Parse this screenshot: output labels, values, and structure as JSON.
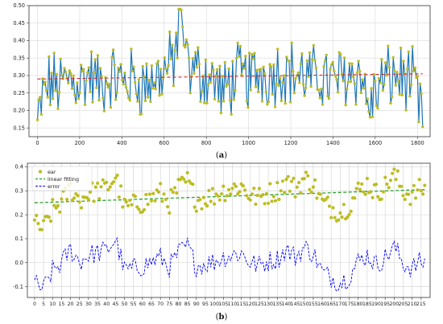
{
  "chart_data": [
    {
      "type": "line",
      "caption": "a",
      "xlim": [
        -40,
        1860
      ],
      "ylim": [
        0.125,
        0.5
      ],
      "x_ticks": [
        0,
        200,
        400,
        600,
        800,
        1000,
        1200,
        1400,
        1600,
        1800
      ],
      "y_ticks": [
        0.15,
        0.2,
        0.25,
        0.3,
        0.35,
        0.4,
        0.45,
        0.5
      ],
      "grid": true,
      "legend": "none",
      "series": [
        {
          "style": "line-with-markers",
          "line_color": "#1f77b4",
          "marker_color": "#bcbd22"
        },
        {
          "style": "dashed-trend",
          "color": "#d62728"
        }
      ],
      "anchors": [
        [
          0,
          0.16
        ],
        [
          25,
          0.24
        ],
        [
          60,
          0.28
        ],
        [
          100,
          0.27
        ],
        [
          150,
          0.29
        ],
        [
          200,
          0.28
        ],
        [
          250,
          0.3
        ],
        [
          300,
          0.27
        ],
        [
          350,
          0.3
        ],
        [
          400,
          0.28
        ],
        [
          450,
          0.29
        ],
        [
          500,
          0.27
        ],
        [
          550,
          0.29
        ],
        [
          600,
          0.31
        ],
        [
          640,
          0.34
        ],
        [
          670,
          0.4
        ],
        [
          690,
          0.42
        ],
        [
          700,
          0.33
        ],
        [
          750,
          0.31
        ],
        [
          800,
          0.3
        ],
        [
          850,
          0.28
        ],
        [
          880,
          0.24
        ],
        [
          900,
          0.27
        ],
        [
          950,
          0.3
        ],
        [
          1000,
          0.29
        ],
        [
          1050,
          0.31
        ],
        [
          1100,
          0.3
        ],
        [
          1150,
          0.32
        ],
        [
          1200,
          0.31
        ],
        [
          1250,
          0.3
        ],
        [
          1300,
          0.29
        ],
        [
          1350,
          0.3
        ],
        [
          1400,
          0.28
        ],
        [
          1450,
          0.3
        ],
        [
          1500,
          0.31
        ],
        [
          1540,
          0.3
        ],
        [
          1560,
          0.21
        ],
        [
          1590,
          0.23
        ],
        [
          1620,
          0.27
        ],
        [
          1650,
          0.29
        ],
        [
          1700,
          0.3
        ],
        [
          1750,
          0.29
        ],
        [
          1790,
          0.27
        ],
        [
          1810,
          0.19
        ],
        [
          1825,
          0.21
        ]
      ],
      "trend": {
        "x": [
          0,
          1825
        ],
        "y": [
          0.29,
          0.305
        ]
      }
    },
    {
      "type": "line",
      "caption": "b",
      "xlim": [
        -4,
        220
      ],
      "ylim": [
        -0.145,
        0.415
      ],
      "x_ticks": [
        0,
        5,
        10,
        15,
        20,
        25,
        30,
        35,
        40,
        45,
        50,
        55,
        60,
        65,
        70,
        75,
        80,
        85,
        90,
        95,
        100,
        105,
        110,
        115,
        120,
        125,
        130,
        135,
        140,
        145,
        150,
        155,
        160,
        165,
        170,
        175,
        180,
        185,
        190,
        195,
        200,
        205,
        210,
        215
      ],
      "y_ticks": [
        -0.1,
        0.0,
        0.1,
        0.2,
        0.3,
        0.4
      ],
      "grid": true,
      "legend": "top-left",
      "series": [
        {
          "name": "ear",
          "style": "markers",
          "color": "#bcbd22"
        },
        {
          "name": "linear fitting",
          "style": "dashed",
          "color": "#2ca02c"
        },
        {
          "name": "error",
          "style": "dashed",
          "color": "#0000ff"
        }
      ],
      "fit": {
        "x": [
          0,
          217
        ],
        "y": [
          0.25,
          0.305
        ]
      },
      "anchors": [
        [
          0,
          0.16
        ],
        [
          5,
          0.14
        ],
        [
          10,
          0.22
        ],
        [
          15,
          0.25
        ],
        [
          20,
          0.31
        ],
        [
          25,
          0.26
        ],
        [
          30,
          0.29
        ],
        [
          35,
          0.3
        ],
        [
          40,
          0.31
        ],
        [
          45,
          0.36
        ],
        [
          50,
          0.23
        ],
        [
          55,
          0.24
        ],
        [
          60,
          0.25
        ],
        [
          65,
          0.27
        ],
        [
          70,
          0.29
        ],
        [
          75,
          0.25
        ],
        [
          80,
          0.31
        ],
        [
          85,
          0.34
        ],
        [
          90,
          0.26
        ],
        [
          95,
          0.27
        ],
        [
          100,
          0.28
        ],
        [
          105,
          0.3
        ],
        [
          110,
          0.31
        ],
        [
          115,
          0.32
        ],
        [
          120,
          0.28
        ],
        [
          125,
          0.27
        ],
        [
          130,
          0.29
        ],
        [
          135,
          0.3
        ],
        [
          140,
          0.34
        ],
        [
          145,
          0.31
        ],
        [
          150,
          0.35
        ],
        [
          155,
          0.33
        ],
        [
          160,
          0.25
        ],
        [
          165,
          0.23
        ],
        [
          170,
          0.21
        ],
        [
          175,
          0.24
        ],
        [
          180,
          0.3
        ],
        [
          185,
          0.33
        ],
        [
          190,
          0.29
        ],
        [
          195,
          0.32
        ],
        [
          200,
          0.37
        ],
        [
          205,
          0.3
        ],
        [
          210,
          0.28
        ],
        [
          215,
          0.31
        ],
        [
          217,
          0.3
        ]
      ]
    }
  ]
}
